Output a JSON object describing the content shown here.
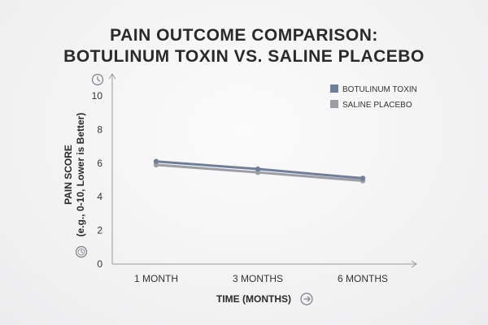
{
  "chart_data": {
    "type": "line",
    "title_lines": [
      "PAIN OUTCOME COMPARISON:",
      "BOTULINUM TOXIN VS. SALINE PLACEBO"
    ],
    "categories": [
      "1 MONTH",
      "3 MONTHS",
      "6 MONTHS"
    ],
    "series": [
      {
        "name": "BOTULINUM TOXIN",
        "values": [
          6.1,
          5.65,
          5.1
        ],
        "color": "#6f7f9a"
      },
      {
        "name": "SALINE PLACEBO",
        "values": [
          5.9,
          5.45,
          4.95
        ],
        "color": "#9c9ea3"
      }
    ],
    "xlabel": "TIME (MONTHS)",
    "ylabel_lines": [
      "PAIN SCORE",
      "(e.g., 0-10, Lower is Better)"
    ],
    "ylim": [
      0,
      10
    ],
    "yticks": [
      0,
      2,
      4,
      6,
      8,
      10
    ],
    "grid": false,
    "legend_position": "top-right",
    "icons": [
      "clock-icon",
      "clock-icon",
      "arrow-right-icon"
    ]
  }
}
